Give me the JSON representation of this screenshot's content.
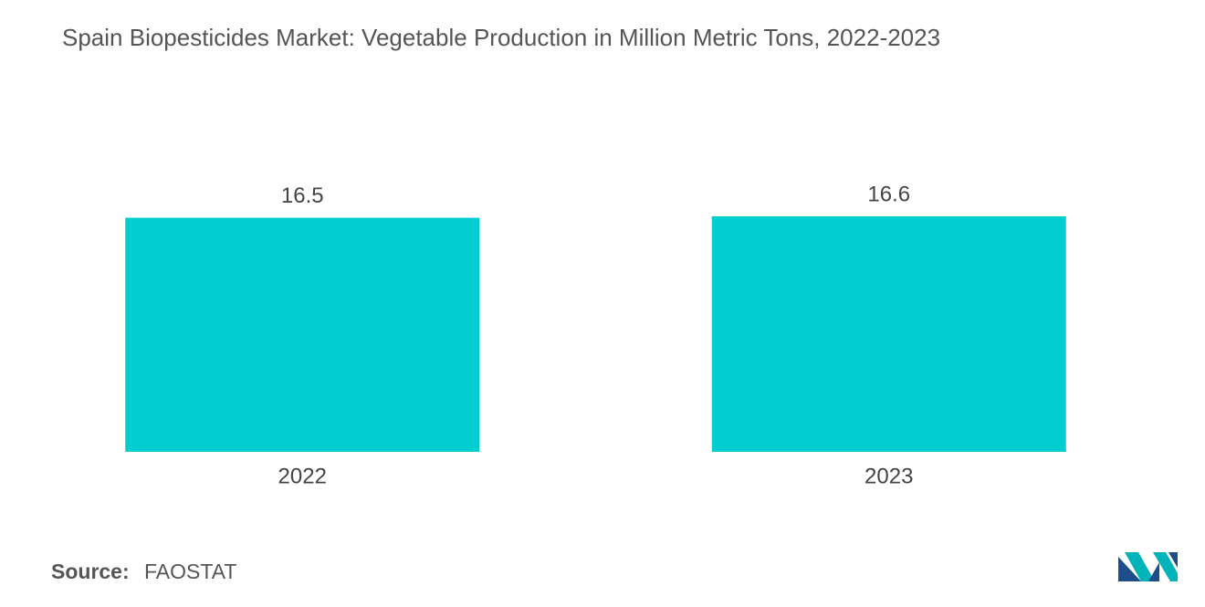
{
  "chart_data": {
    "type": "bar",
    "title": "Spain Biopesticides Market: Vegetable Production in Million Metric Tons, 2022-2023",
    "categories": [
      "2022",
      "2023"
    ],
    "values": [
      16.5,
      16.6
    ],
    "color": "#00ced1",
    "source_label": "Source:",
    "source": "FAOSTAT"
  }
}
